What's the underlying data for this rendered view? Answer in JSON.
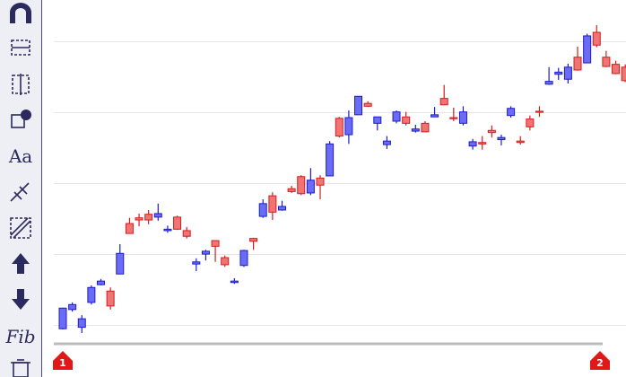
{
  "toolbar": {
    "font_tool": "Aa",
    "fib_tool": "Fib"
  },
  "markers": [
    "1",
    "2"
  ],
  "chart_data": {
    "type": "candlestick",
    "up_color": "#6b6bf5",
    "up_edge": "#1c1ccc",
    "down_color": "#f07474",
    "down_edge": "#d41c1c",
    "ylim": [
      7,
      56
    ],
    "yticks": [
      10,
      20,
      30,
      40,
      50
    ],
    "grid": true,
    "open": [
      9.5,
      12.2,
      9.7,
      13.2,
      15.7,
      14.8,
      17.2,
      24.3,
      25.1,
      25.6,
      25.2,
      23.3,
      25.2,
      23.3,
      18.6,
      20.0,
      21.9,
      19.5,
      16.0,
      18.4,
      22.2,
      25.3,
      28.2,
      26.2,
      29.2,
      30.9,
      28.6,
      30.7,
      31.0,
      39.1,
      36.8,
      39.6,
      41.2,
      38.4,
      35.4,
      38.7,
      39.3,
      37.3,
      38.4,
      39.3,
      41.9,
      39.2,
      38.4,
      35.2,
      35.7,
      37.4,
      36.1,
      39.5,
      35.9,
      39.0,
      40.1,
      43.9,
      45.3,
      44.6,
      47.7,
      46.9,
      51.2,
      47.7,
      46.7,
      46.3
    ],
    "high": [
      12.4,
      13.2,
      11.4,
      15.6,
      16.5,
      15.3,
      21.4,
      25.1,
      25.7,
      26.2,
      27.1,
      24.0,
      25.4,
      23.8,
      19.4,
      20.6,
      21.9,
      19.8,
      16.6,
      20.6,
      22.3,
      27.7,
      28.7,
      27.5,
      29.6,
      31.1,
      32.1,
      31.1,
      35.9,
      39.3,
      40.2,
      42.2,
      41.5,
      39.3,
      36.6,
      40.2,
      40.0,
      38.2,
      38.7,
      40.7,
      43.8,
      40.6,
      40.8,
      36.2,
      36.6,
      38.1,
      36.8,
      40.8,
      36.6,
      39.5,
      40.8,
      46.3,
      46.2,
      46.8,
      49.2,
      51.0,
      52.2,
      48.6,
      47.2,
      46.7
    ],
    "low": [
      9.4,
      11.9,
      8.9,
      12.9,
      15.6,
      12.2,
      17.2,
      22.9,
      23.9,
      24.2,
      24.7,
      23.0,
      23.4,
      22.2,
      17.6,
      19.1,
      18.9,
      18.2,
      15.8,
      18.2,
      20.6,
      25.1,
      24.8,
      26.1,
      28.6,
      28.3,
      28.3,
      27.7,
      31.0,
      36.4,
      35.5,
      39.6,
      40.7,
      37.4,
      34.8,
      38.4,
      38.1,
      37.1,
      37.2,
      39.3,
      41.0,
      38.7,
      38.1,
      34.7,
      34.7,
      36.4,
      35.3,
      39.2,
      35.4,
      37.4,
      39.3,
      43.8,
      44.5,
      44.0,
      45.8,
      46.9,
      49.1,
      46.3,
      45.3,
      44.2
    ],
    "close": [
      12.4,
      12.9,
      10.9,
      15.3,
      16.2,
      12.7,
      20.1,
      22.9,
      24.8,
      24.8,
      25.7,
      23.5,
      23.5,
      22.5,
      18.9,
      20.4,
      21.1,
      18.5,
      16.2,
      20.5,
      21.8,
      27.1,
      25.9,
      26.7,
      28.8,
      28.5,
      30.4,
      29.7,
      35.5,
      36.6,
      39.2,
      42.2,
      40.8,
      39.3,
      35.9,
      40.0,
      38.4,
      37.6,
      37.2,
      39.6,
      41.0,
      39.1,
      40.0,
      35.8,
      35.5,
      37.1,
      36.4,
      40.5,
      35.7,
      37.9,
      40.0,
      44.3,
      45.6,
      46.3,
      45.9,
      50.7,
      49.4,
      46.4,
      45.4,
      44.4
    ]
  }
}
